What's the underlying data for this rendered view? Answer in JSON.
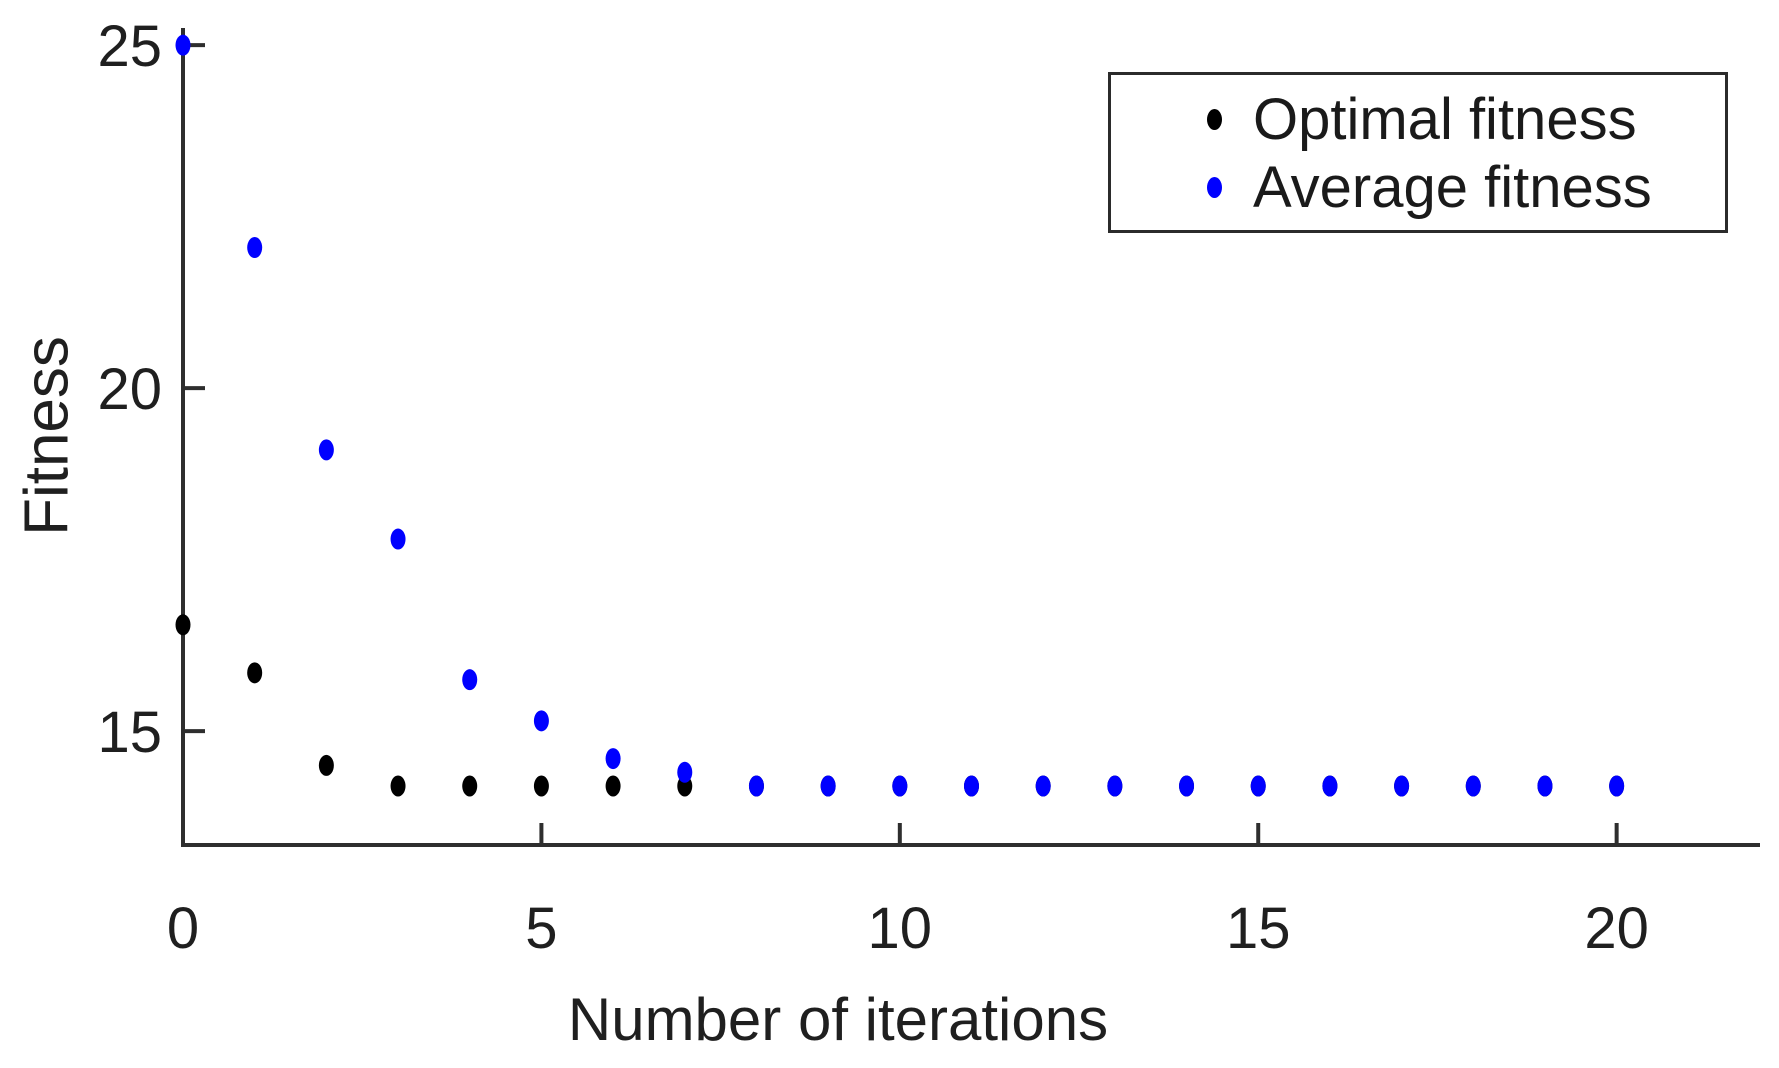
{
  "chart_data": {
    "type": "scatter",
    "title": "",
    "xlabel": "Number of iterations",
    "ylabel": "Fitness",
    "x": [
      0,
      1,
      2,
      3,
      4,
      5,
      6,
      7,
      8,
      9,
      10,
      11,
      12,
      13,
      14,
      15,
      16,
      17,
      18,
      19,
      20
    ],
    "series": [
      {
        "name": "Optimal fitness",
        "color": "#000000",
        "values": [
          16.55,
          15.85,
          14.5,
          14.2,
          14.2,
          14.2,
          14.2,
          14.2,
          14.2,
          14.2,
          14.2,
          14.2,
          14.2,
          14.2,
          14.2,
          14.2,
          14.2,
          14.2,
          14.2,
          14.2,
          14.2
        ]
      },
      {
        "name": "Average fitness",
        "color": "#0000ff",
        "values": [
          25,
          22.05,
          19.1,
          17.8,
          15.75,
          15.15,
          14.6,
          14.4,
          14.2,
          14.2,
          14.2,
          14.2,
          14.2,
          14.2,
          14.2,
          14.2,
          14.2,
          14.2,
          14.2,
          14.2,
          14.2
        ]
      }
    ],
    "xticks": [
      0,
      5,
      10,
      15,
      20
    ],
    "yticks": [
      15,
      20,
      25
    ],
    "xlim": [
      0,
      22
    ],
    "ylim": [
      13.34,
      25.25
    ],
    "grid": false,
    "legend_position": "top-right",
    "marker_style": "dot",
    "axis_color": "#2e2e2e",
    "text_color": "#1f1f1f"
  }
}
